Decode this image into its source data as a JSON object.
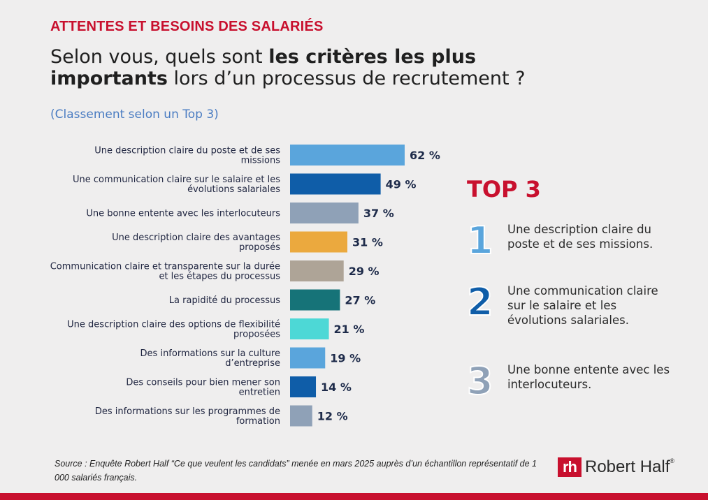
{
  "kicker": "ATTENTES ET BESOINS DES SALARIÉS",
  "question": {
    "part1": "Selon vous, quels sont ",
    "bold1": "les critères les plus",
    "bold2": "importants",
    "part2": " lors d’un processus de recrutement ?"
  },
  "subtitle": "(Classement selon un Top 3)",
  "chart_data": {
    "type": "bar",
    "orientation": "horizontal",
    "categories": [
      [
        "Une description claire du poste et de ses",
        "missions"
      ],
      [
        "Une communication claire sur le salaire et les",
        "évolutions salariales"
      ],
      [
        "Une bonne entente avec les interlocuteurs"
      ],
      [
        "Une description claire des avantages",
        "proposés"
      ],
      [
        "Communication claire et transparente sur la durée",
        "et les étapes du processus"
      ],
      [
        "La rapidité du processus"
      ],
      [
        "Une description claire des options de flexibilité",
        "proposées"
      ],
      [
        "Des informations sur la culture",
        "d’entreprise"
      ],
      [
        "Des conseils pour bien mener son",
        "entretien"
      ],
      [
        "Des informations sur les programmes de",
        "formation"
      ]
    ],
    "values": [
      62,
      49,
      37,
      31,
      29,
      27,
      21,
      19,
      14,
      12
    ],
    "value_labels": [
      "62 %",
      "49 %",
      "37 %",
      "31 %",
      "29 %",
      "27 %",
      "21 %",
      "19 %",
      "14 %",
      "12 %"
    ],
    "colors": [
      "#5aa5dc",
      "#0f5da8",
      "#8fa1b7",
      "#eba93e",
      "#aea497",
      "#167378",
      "#4dd8d6",
      "#5aa5dc",
      "#0f5da8",
      "#8fa1b7"
    ],
    "grid": false,
    "legend": "none"
  },
  "top3": {
    "title": "TOP 3",
    "items": [
      {
        "num": "1",
        "color": "#5aa5dc",
        "text": "Une description claire du poste et de ses missions."
      },
      {
        "num": "2",
        "color": "#0f5da8",
        "text": "Une communication claire sur le salaire et les évolutions salariales."
      },
      {
        "num": "3",
        "color": "#8fa1b7",
        "text": "Une bonne entente avec les interlocuteurs."
      }
    ]
  },
  "source": "Source : Enquête Robert Half “Ce que veulent les candidats” menée en mars 2025 auprès d’un échantillon représentatif de 1 000 salariés français.",
  "logo": {
    "mark": "rh",
    "name": "Robert Half",
    "registered": "®",
    "brand_color": "#c8102e"
  }
}
